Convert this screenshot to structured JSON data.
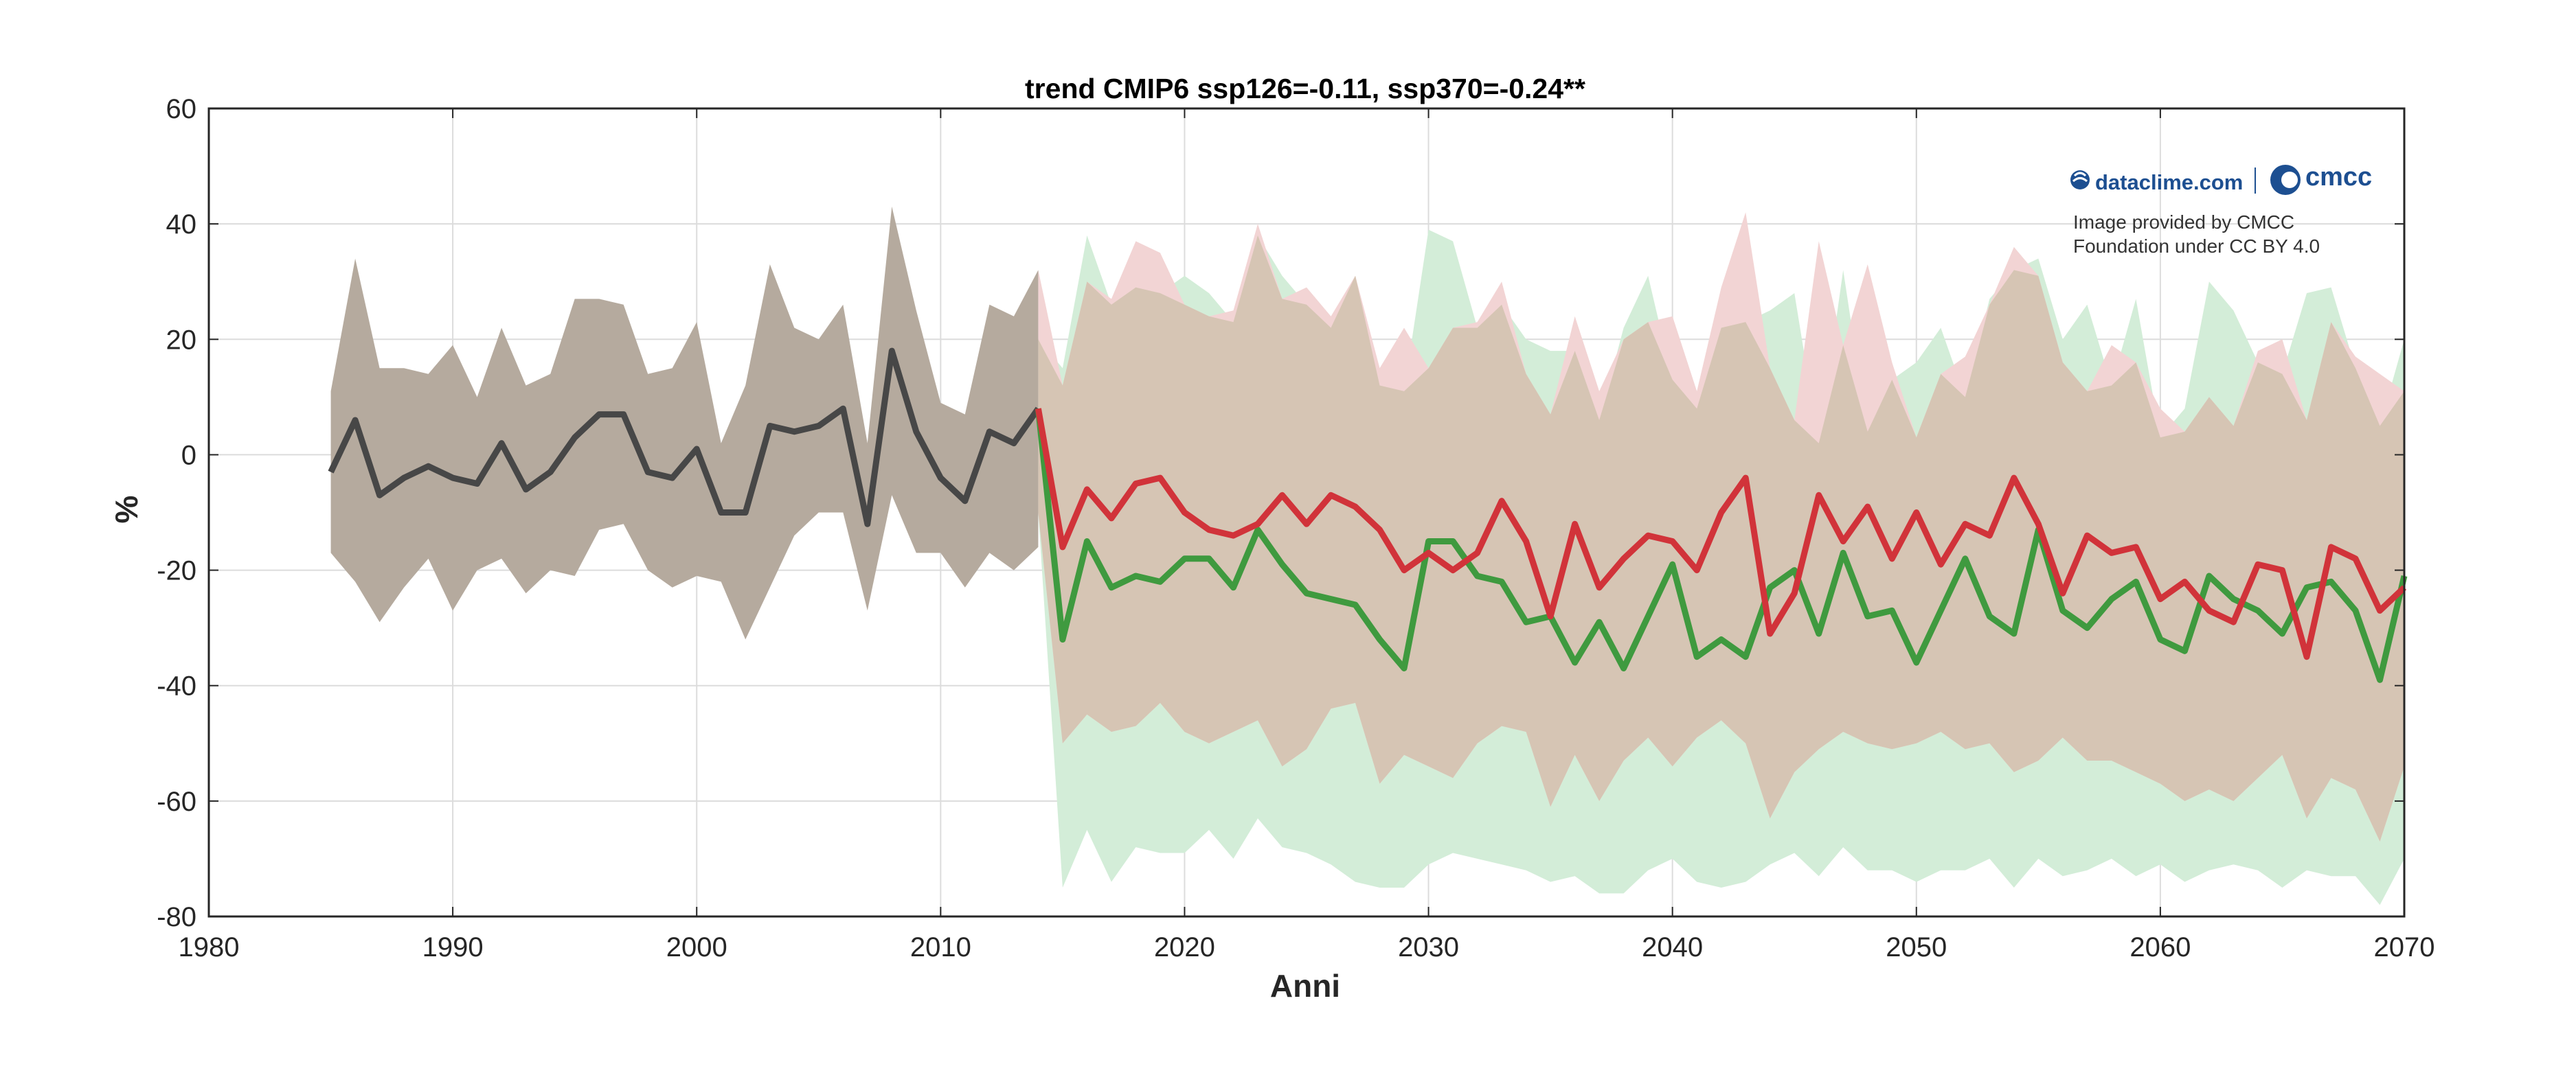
{
  "chart_data": {
    "type": "line",
    "title": "trend CMIP6  ssp126=-0.11, ssp370=-0.24**",
    "xlabel": "Anni",
    "ylabel": "%",
    "xlim": [
      1980,
      2070
    ],
    "ylim": [
      -80,
      60
    ],
    "xticks": [
      1980,
      1990,
      2000,
      2010,
      2020,
      2030,
      2040,
      2050,
      2060,
      2070
    ],
    "yticks": [
      -80,
      -60,
      -40,
      -20,
      0,
      20,
      40,
      60
    ],
    "grid": true,
    "colors": {
      "historical": "#474747",
      "historical_band": "#b5aa9e",
      "ssp126": "#3f9a3f",
      "ssp126_band": "#d3edd8",
      "ssp370": "#d1333a",
      "ssp370_band": "#f2d4d4",
      "overlap_band": "#d6c5b4"
    },
    "series": [
      {
        "name": "historical",
        "x": [
          1985,
          1986,
          1987,
          1988,
          1989,
          1990,
          1991,
          1992,
          1993,
          1994,
          1995,
          1996,
          1997,
          1998,
          1999,
          2000,
          2001,
          2002,
          2003,
          2004,
          2005,
          2006,
          2007,
          2008,
          2009,
          2010,
          2011,
          2012,
          2013,
          2014
        ],
        "y": [
          -3,
          6,
          -7,
          -4,
          -2,
          -4,
          -5,
          2,
          -6,
          -3,
          3,
          7,
          7,
          -3,
          -4,
          1,
          -10,
          -10,
          5,
          4,
          5,
          8,
          -12,
          18,
          4,
          -4,
          -8,
          4,
          2,
          8
        ],
        "lower": [
          -17,
          -22,
          -29,
          -23,
          -18,
          -27,
          -20,
          -18,
          -24,
          -20,
          -21,
          -13,
          -12,
          -20,
          -23,
          -21,
          -22,
          -32,
          -23,
          -14,
          -10,
          -10,
          -27,
          -7,
          -17,
          -17,
          -23,
          -17,
          -20,
          -16
        ],
        "upper": [
          11,
          34,
          15,
          15,
          14,
          19,
          10,
          22,
          12,
          14,
          27,
          27,
          26,
          14,
          15,
          23,
          2,
          12,
          33,
          22,
          20,
          26,
          2,
          43,
          25,
          9,
          7,
          26,
          24,
          32
        ]
      },
      {
        "name": "ssp126",
        "x": [
          2014,
          2015,
          2016,
          2017,
          2018,
          2019,
          2020,
          2021,
          2022,
          2023,
          2024,
          2025,
          2026,
          2027,
          2028,
          2029,
          2030,
          2031,
          2032,
          2033,
          2034,
          2035,
          2036,
          2037,
          2038,
          2039,
          2040,
          2041,
          2042,
          2043,
          2044,
          2045,
          2046,
          2047,
          2048,
          2049,
          2050,
          2051,
          2052,
          2053,
          2054,
          2055,
          2056,
          2057,
          2058,
          2059,
          2060,
          2061,
          2062,
          2063,
          2064,
          2065,
          2066,
          2067,
          2068,
          2069,
          2070
        ],
        "y": [
          8,
          -32,
          -15,
          -23,
          -21,
          -22,
          -18,
          -18,
          -23,
          -13,
          -19,
          -24,
          -25,
          -26,
          -32,
          -37,
          -15,
          -15,
          -21,
          -22,
          -29,
          -28,
          -36,
          -29,
          -37,
          -28,
          -19,
          -35,
          -32,
          -35,
          -23,
          -20,
          -31,
          -17,
          -28,
          -27,
          -36,
          -27,
          -18,
          -28,
          -31,
          -13,
          -27,
          -30,
          -25,
          -22,
          -32,
          -34,
          -21,
          -25,
          -27,
          -31,
          -23,
          -22,
          -27,
          -39,
          -21
        ],
        "lower": [
          -10,
          -75,
          -65,
          -74,
          -68,
          -69,
          -69,
          -65,
          -70,
          -63,
          -68,
          -69,
          -71,
          -74,
          -75,
          -75,
          -71,
          -69,
          -70,
          -71,
          -72,
          -74,
          -73,
          -76,
          -76,
          -72,
          -70,
          -74,
          -75,
          -74,
          -71,
          -69,
          -73,
          -68,
          -72,
          -72,
          -74,
          -72,
          -72,
          -70,
          -75,
          -70,
          -73,
          -72,
          -70,
          -73,
          -71,
          -74,
          -72,
          -71,
          -72,
          -75,
          -72,
          -73,
          -73,
          -78,
          -70
        ],
        "upper": [
          20,
          15,
          38,
          26,
          29,
          28,
          31,
          28,
          23,
          38,
          31,
          26,
          22,
          31,
          12,
          11,
          39,
          37,
          22,
          26,
          20,
          18,
          18,
          6,
          22,
          31,
          13,
          8,
          22,
          23,
          25,
          28,
          2,
          32,
          4,
          13,
          16,
          22,
          10,
          27,
          32,
          34,
          20,
          26,
          12,
          27,
          3,
          8,
          30,
          25,
          16,
          14,
          28,
          29,
          15,
          5,
          20
        ]
      },
      {
        "name": "ssp370",
        "x": [
          2014,
          2015,
          2016,
          2017,
          2018,
          2019,
          2020,
          2021,
          2022,
          2023,
          2024,
          2025,
          2026,
          2027,
          2028,
          2029,
          2030,
          2031,
          2032,
          2033,
          2034,
          2035,
          2036,
          2037,
          2038,
          2039,
          2040,
          2041,
          2042,
          2043,
          2044,
          2045,
          2046,
          2047,
          2048,
          2049,
          2050,
          2051,
          2052,
          2053,
          2054,
          2055,
          2056,
          2057,
          2058,
          2059,
          2060,
          2061,
          2062,
          2063,
          2064,
          2065,
          2066,
          2067,
          2068,
          2069,
          2070
        ],
        "y": [
          8,
          -16,
          -6,
          -11,
          -5,
          -4,
          -10,
          -13,
          -14,
          -12,
          -7,
          -12,
          -7,
          -9,
          -13,
          -20,
          -17,
          -20,
          -17,
          -8,
          -15,
          -28,
          -12,
          -23,
          -18,
          -14,
          -15,
          -20,
          -10,
          -4,
          -31,
          -24,
          -7,
          -15,
          -9,
          -18,
          -10,
          -19,
          -12,
          -14,
          -4,
          -12,
          -24,
          -14,
          -17,
          -16,
          -25,
          -22,
          -27,
          -29,
          -19,
          -20,
          -35,
          -16,
          -18,
          -27,
          -23
        ],
        "lower": [
          -10,
          -50,
          -45,
          -48,
          -47,
          -43,
          -48,
          -50,
          -48,
          -46,
          -54,
          -51,
          -44,
          -43,
          -57,
          -52,
          -54,
          -56,
          -50,
          -47,
          -48,
          -61,
          -52,
          -60,
          -53,
          -49,
          -54,
          -49,
          -46,
          -50,
          -63,
          -55,
          -51,
          -48,
          -50,
          -51,
          -50,
          -48,
          -51,
          -50,
          -55,
          -53,
          -49,
          -53,
          -53,
          -55,
          -57,
          -60,
          -58,
          -60,
          -56,
          -52,
          -63,
          -56,
          -58,
          -67,
          -54
        ],
        "upper": [
          32,
          12,
          30,
          27,
          37,
          35,
          26,
          24,
          25,
          40,
          27,
          29,
          24,
          31,
          15,
          22,
          15,
          22,
          23,
          30,
          14,
          7,
          24,
          11,
          20,
          23,
          24,
          11,
          29,
          42,
          15,
          6,
          37,
          19,
          33,
          16,
          3,
          14,
          17,
          26,
          36,
          31,
          16,
          11,
          19,
          16,
          8,
          4,
          10,
          5,
          18,
          20,
          6,
          23,
          17,
          14,
          11
        ]
      }
    ],
    "watermark": {
      "logo_left": "dataclime.com",
      "logo_right": "cmcc",
      "credit_line1": "Image provided by CMCC",
      "credit_line2": "Foundation under CC BY 4.0"
    }
  }
}
